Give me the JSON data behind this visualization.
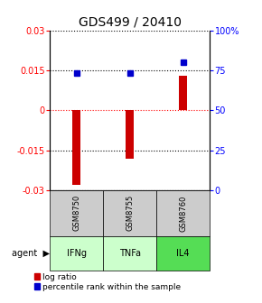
{
  "title": "GDS499 / 20410",
  "samples": [
    "GSM8750",
    "GSM8755",
    "GSM8760"
  ],
  "agents": [
    "IFNg",
    "TNFa",
    "IL4"
  ],
  "log_ratios": [
    -0.028,
    -0.018,
    0.013
  ],
  "percentile_ranks": [
    73,
    73,
    80
  ],
  "ylim_left": [
    -0.03,
    0.03
  ],
  "ylim_right": [
    0,
    100
  ],
  "yticks_left": [
    -0.03,
    -0.015,
    0,
    0.015,
    0.03
  ],
  "yticks_right": [
    0,
    25,
    50,
    75,
    100
  ],
  "bar_color": "#cc0000",
  "dot_color": "#0000cc",
  "sample_bg_color": "#cccccc",
  "agent_bg_colors": [
    "#ccffcc",
    "#ccffcc",
    "#55dd55"
  ],
  "title_fontsize": 10,
  "tick_fontsize": 7,
  "legend_fontsize": 6.5,
  "bar_width": 0.15
}
